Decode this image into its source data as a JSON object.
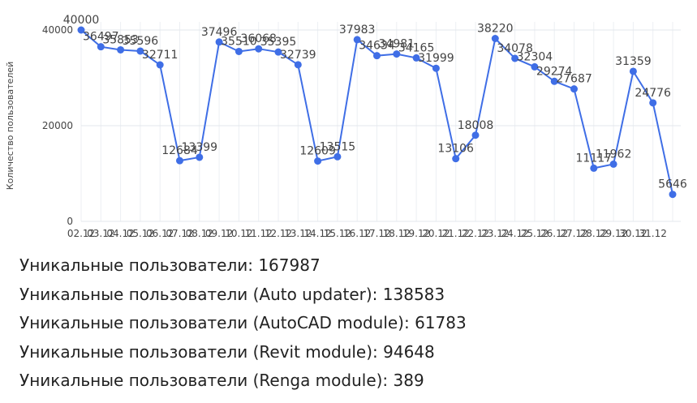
{
  "chart_data": {
    "type": "line",
    "y_label": "Количество пользователей",
    "categories": [
      "02.12",
      "03.12",
      "04.12",
      "05.12",
      "06.12",
      "07.12",
      "08.12",
      "09.12",
      "10.12",
      "11.12",
      "12.12",
      "13.12",
      "14.12",
      "15.12",
      "16.12",
      "17.12",
      "18.12",
      "19.12",
      "20.12",
      "21.12",
      "22.12",
      "23.12",
      "24.12",
      "25.12",
      "26.12",
      "27.12",
      "28.12",
      "29.12",
      "30.12",
      "31.12",
      null
    ],
    "values": [
      40000,
      36497,
      35853,
      35596,
      32711,
      12684,
      13399,
      37496,
      35510,
      36068,
      35395,
      32739,
      12609,
      13515,
      37983,
      34634,
      34981,
      34165,
      31999,
      13106,
      18008,
      38220,
      34078,
      32304,
      29274,
      27687,
      11117,
      11962,
      31359,
      24776,
      5646
    ],
    "color": "#3f6ee6",
    "ylim": [
      0,
      40000
    ],
    "yticks": [
      0,
      20000,
      40000
    ],
    "grid": true
  },
  "stats": [
    "Уникальные пользователи: 167987",
    "Уникальные пользователи (Auto updater): 138583",
    "Уникальные пользователи (AutoCAD module): 61783",
    "Уникальные пользователи (Revit module): 94648",
    "Уникальные пользователи (Renga module): 389"
  ]
}
